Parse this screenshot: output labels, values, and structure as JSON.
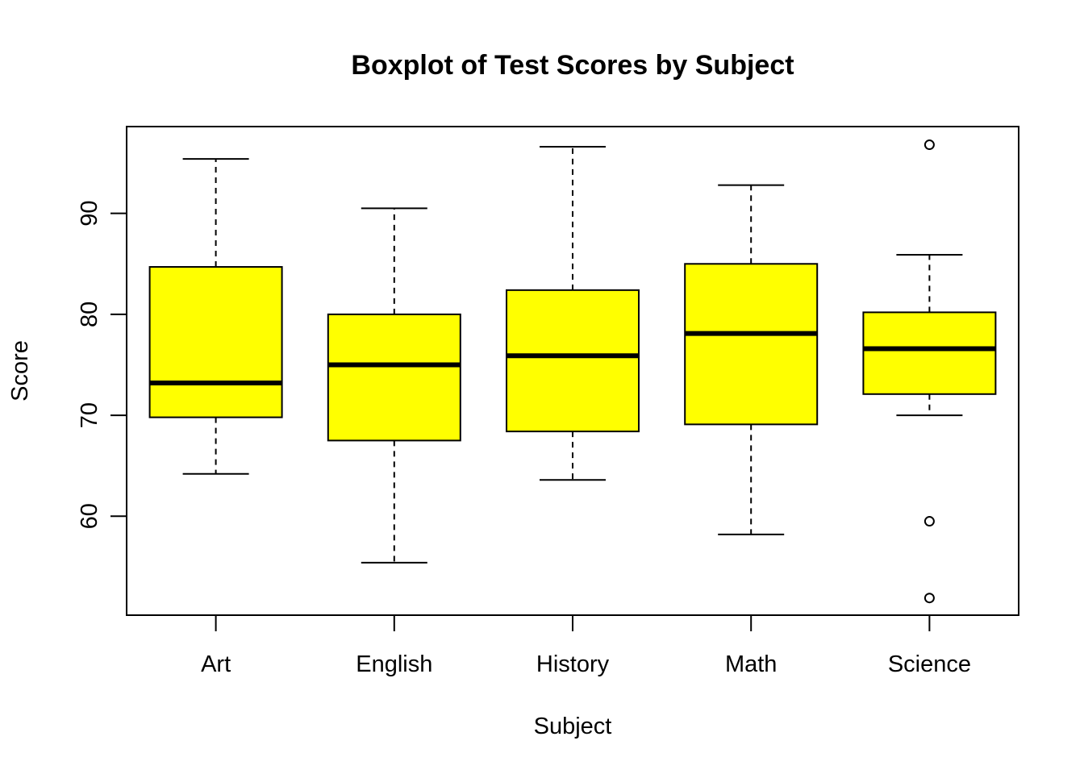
{
  "chart_data": {
    "type": "boxplot",
    "title": "Boxplot of Test Scores by Subject",
    "xlabel": "Subject",
    "ylabel": "Score",
    "ylim": [
      50.2,
      98.6
    ],
    "yticks": [
      60,
      70,
      80,
      90
    ],
    "categories": [
      "Art",
      "English",
      "History",
      "Math",
      "Science"
    ],
    "boxes": [
      {
        "name": "Art",
        "whisker_low": 64.2,
        "q1": 69.8,
        "median": 73.2,
        "q3": 84.7,
        "whisker_high": 95.4,
        "outliers": []
      },
      {
        "name": "English",
        "whisker_low": 55.4,
        "q1": 67.5,
        "median": 75.0,
        "q3": 80.0,
        "whisker_high": 90.5,
        "outliers": []
      },
      {
        "name": "History",
        "whisker_low": 63.6,
        "q1": 68.4,
        "median": 75.9,
        "q3": 82.4,
        "whisker_high": 96.6,
        "outliers": []
      },
      {
        "name": "Math",
        "whisker_low": 58.2,
        "q1": 69.1,
        "median": 78.1,
        "q3": 85.0,
        "whisker_high": 92.8,
        "outliers": []
      },
      {
        "name": "Science",
        "whisker_low": 70.0,
        "q1": 72.1,
        "median": 76.6,
        "q3": 80.2,
        "whisker_high": 85.9,
        "outliers": [
          96.8,
          59.5,
          51.9
        ]
      }
    ],
    "box_color": "#ffff00",
    "line_color": "#000000",
    "grid": false,
    "legend": "none"
  }
}
